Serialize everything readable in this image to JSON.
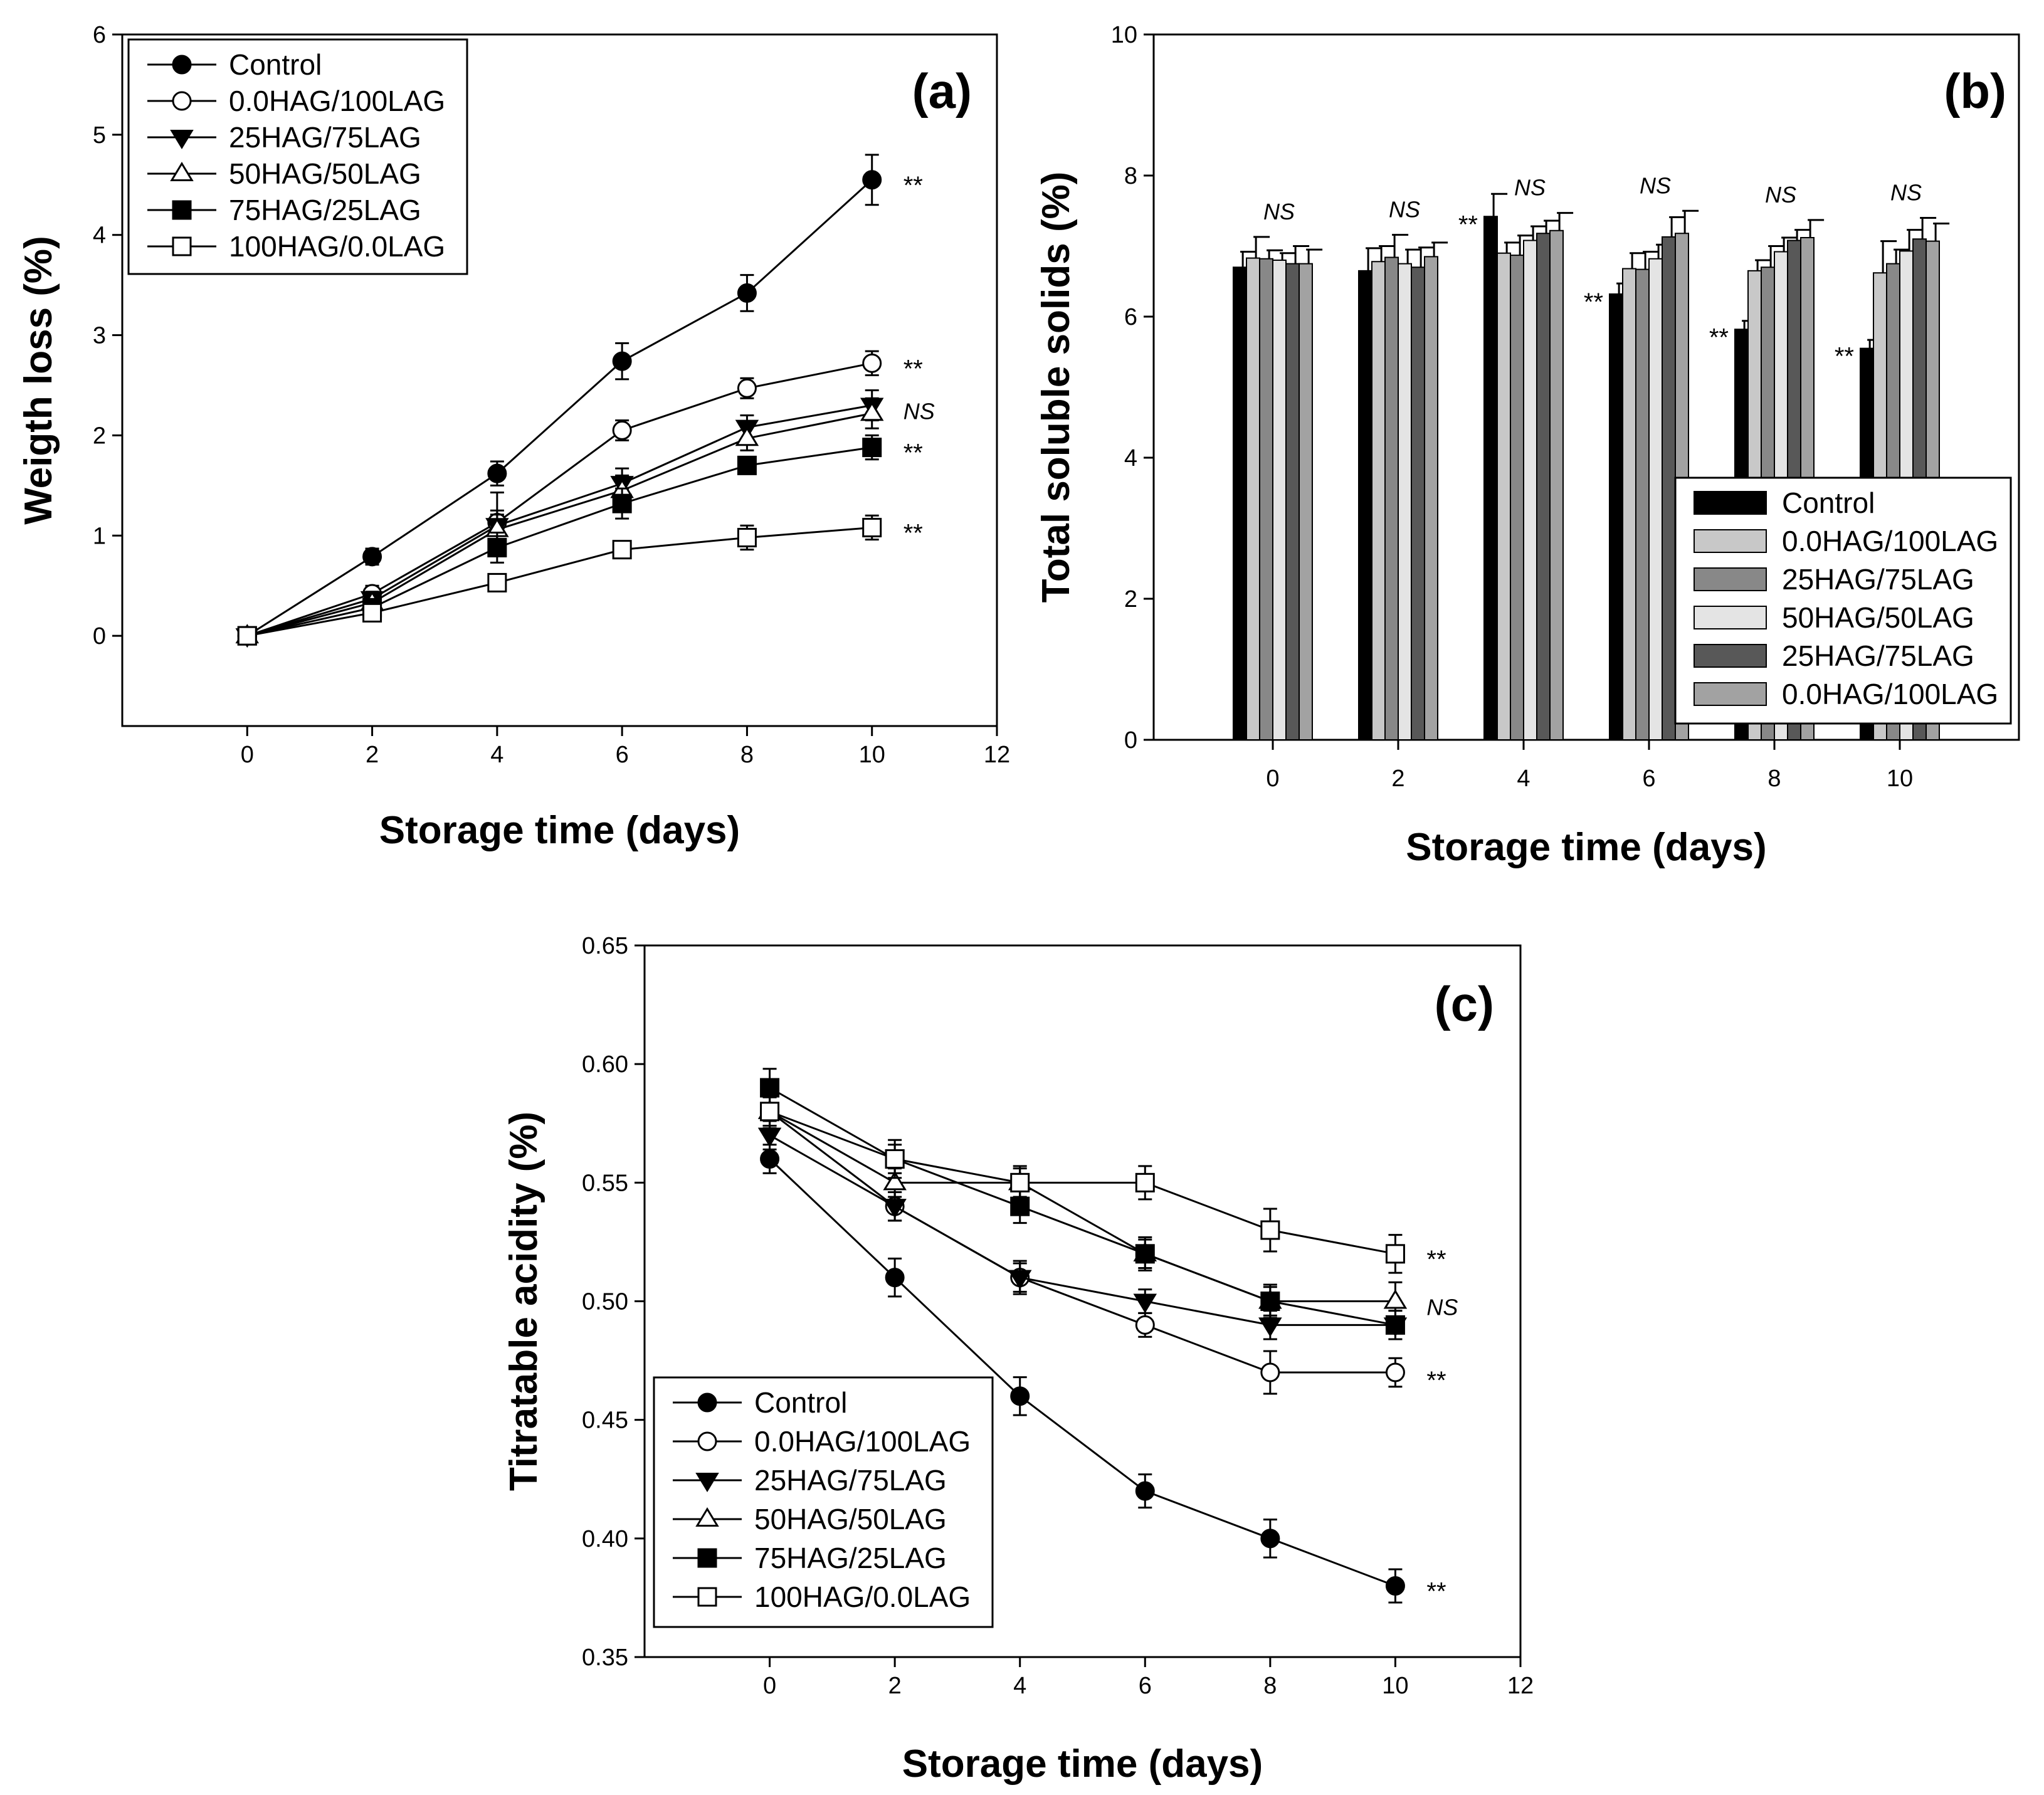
{
  "chart_data": [
    {
      "type": "line",
      "panel": "(a)",
      "xlabel": "Storage time (days)",
      "ylabel": "Weigth loss (%)",
      "xlim": [
        -2,
        12
      ],
      "ylim": [
        -0.9,
        6
      ],
      "xticks": [
        "0",
        "2",
        "4",
        "6",
        "8",
        "10",
        "12"
      ],
      "yticks": [
        "0",
        "1",
        "2",
        "3",
        "4",
        "5",
        "6"
      ],
      "x": [
        0,
        2,
        4,
        6,
        8,
        10
      ],
      "legend_position": "top-left",
      "series": [
        {
          "name": "Control",
          "marker": "circle-filled",
          "values": [
            0,
            0.79,
            1.62,
            2.74,
            3.42,
            4.55
          ],
          "err": [
            0.04,
            0.08,
            0.12,
            0.18,
            0.18,
            0.25
          ],
          "sig": "**"
        },
        {
          "name": "0.0HAG/100LAG",
          "marker": "circle-open",
          "values": [
            0,
            0.42,
            1.13,
            2.05,
            2.47,
            2.72
          ],
          "err": [
            0.03,
            0.08,
            0.3,
            0.1,
            0.1,
            0.12
          ],
          "sig": "**"
        },
        {
          "name": "25HAG/75LAG",
          "marker": "triangle-down-filled",
          "values": [
            0,
            0.37,
            1.1,
            1.52,
            2.08,
            2.3
          ],
          "err": [
            0.03,
            0.07,
            0.15,
            0.15,
            0.12,
            0.15
          ],
          "sig": "NS"
        },
        {
          "name": "50HAG/50LAG",
          "marker": "triangle-up-open",
          "values": [
            0,
            0.33,
            1.06,
            1.45,
            1.97,
            2.22
          ],
          "err": [
            0.03,
            0.07,
            0.15,
            0.15,
            0.12,
            0.15
          ],
          "sig": ""
        },
        {
          "name": "75HAG/25LAG",
          "marker": "square-filled",
          "values": [
            0,
            0.28,
            0.88,
            1.32,
            1.7,
            1.88
          ],
          "err": [
            0.03,
            0.07,
            0.15,
            0.15,
            0.08,
            0.12
          ],
          "sig": "**"
        },
        {
          "name": "100HAG/0.0LAG",
          "marker": "square-open",
          "values": [
            0,
            0.23,
            0.53,
            0.86,
            0.98,
            1.08
          ],
          "err": [
            0.03,
            0.06,
            0.08,
            0.08,
            0.12,
            0.12
          ],
          "sig": "**"
        }
      ]
    },
    {
      "type": "bar",
      "panel": "(b)",
      "xlabel": "Storage time (days)",
      "ylabel": "Total soluble solids (%)",
      "ylim": [
        0,
        10
      ],
      "categories": [
        "0",
        "2",
        "4",
        "6",
        "8",
        "10"
      ],
      "yticks": [
        "0",
        "2",
        "4",
        "6",
        "8",
        "10"
      ],
      "legend_position": "bottom-right",
      "category_labels": [
        "NS",
        "NS",
        "NS",
        "NS",
        "NS",
        "NS"
      ],
      "control_sig": [
        "",
        "",
        "**",
        "**",
        "**",
        "**"
      ],
      "series": [
        {
          "name": "Control",
          "color": "#000000",
          "values": [
            6.7,
            6.65,
            7.42,
            6.32,
            5.82,
            5.55
          ],
          "err": [
            0.22,
            0.32,
            0.32,
            0.15,
            0.12,
            0.12
          ]
        },
        {
          "name": "0.0HAG/100LAG",
          "color": "#c8c8c8",
          "values": [
            6.83,
            6.78,
            6.9,
            6.68,
            6.65,
            6.62
          ],
          "err": [
            0.3,
            0.22,
            0.15,
            0.22,
            0.15,
            0.45
          ]
        },
        {
          "name": "25HAG/75LAG",
          "color": "#888888",
          "values": [
            6.82,
            6.84,
            6.87,
            6.67,
            6.7,
            6.75
          ],
          "err": [
            0.12,
            0.32,
            0.28,
            0.25,
            0.3,
            0.2
          ]
        },
        {
          "name": "50HAG/50LAG",
          "color": "#e4e4e4",
          "values": [
            6.8,
            6.75,
            7.08,
            6.82,
            6.92,
            6.93
          ],
          "err": [
            0.1,
            0.2,
            0.2,
            0.2,
            0.2,
            0.3
          ]
        },
        {
          "name": "25HAG/75LAG",
          "color": "#585858",
          "values": [
            6.75,
            6.7,
            7.18,
            7.13,
            7.08,
            7.1
          ],
          "err": [
            0.25,
            0.28,
            0.18,
            0.28,
            0.15,
            0.3
          ]
        },
        {
          "name": "0.0HAG/100LAG",
          "color": "#a2a2a2",
          "values": [
            6.75,
            6.85,
            7.22,
            7.18,
            7.12,
            7.07
          ],
          "err": [
            0.2,
            0.2,
            0.25,
            0.32,
            0.25,
            0.25
          ]
        }
      ]
    },
    {
      "type": "line",
      "panel": "(c)",
      "xlabel": "Storage time (days)",
      "ylabel": "Titratable acidity (%)",
      "xlim": [
        -2,
        12
      ],
      "ylim": [
        0.35,
        0.65
      ],
      "xticks": [
        "0",
        "2",
        "4",
        "6",
        "8",
        "10",
        "12"
      ],
      "yticks": [
        "0.35",
        "0.40",
        "0.45",
        "0.50",
        "0.55",
        "0.60",
        "0.65"
      ],
      "x": [
        0,
        2,
        4,
        6,
        8,
        10
      ],
      "legend_position": "bottom-left",
      "series": [
        {
          "name": "Control",
          "marker": "circle-filled",
          "values": [
            0.56,
            0.51,
            0.46,
            0.42,
            0.4,
            0.38
          ],
          "err": [
            0.006,
            0.008,
            0.008,
            0.007,
            0.008,
            0.007
          ],
          "sig": "**"
        },
        {
          "name": "0.0HAG/100LAG",
          "marker": "circle-open",
          "values": [
            0.58,
            0.54,
            0.51,
            0.49,
            0.47,
            0.47
          ],
          "err": [
            0.007,
            0.006,
            0.007,
            0.005,
            0.009,
            0.006
          ],
          "sig": "**"
        },
        {
          "name": "25HAG/75LAG",
          "marker": "triangle-down-filled",
          "values": [
            0.57,
            0.54,
            0.51,
            0.5,
            0.49,
            0.49
          ],
          "err": [
            0.006,
            0.006,
            0.006,
            0.005,
            0.006,
            0.006
          ],
          "sig": ""
        },
        {
          "name": "50HAG/50LAG",
          "marker": "triangle-up-open",
          "values": [
            0.58,
            0.55,
            0.55,
            0.52,
            0.5,
            0.5
          ],
          "err": [
            0.006,
            0.006,
            0.006,
            0.006,
            0.006,
            0.008
          ],
          "sig": "NS"
        },
        {
          "name": "75HAG/25LAG",
          "marker": "square-filled",
          "values": [
            0.59,
            0.56,
            0.54,
            0.52,
            0.5,
            0.49
          ],
          "err": [
            0.008,
            0.006,
            0.007,
            0.007,
            0.007,
            0.006
          ],
          "sig": ""
        },
        {
          "name": "100HAG/0.0LAG",
          "marker": "square-open",
          "values": [
            0.58,
            0.56,
            0.55,
            0.55,
            0.53,
            0.52
          ],
          "err": [
            0.006,
            0.008,
            0.007,
            0.007,
            0.009,
            0.008
          ],
          "sig": "**"
        }
      ]
    }
  ]
}
